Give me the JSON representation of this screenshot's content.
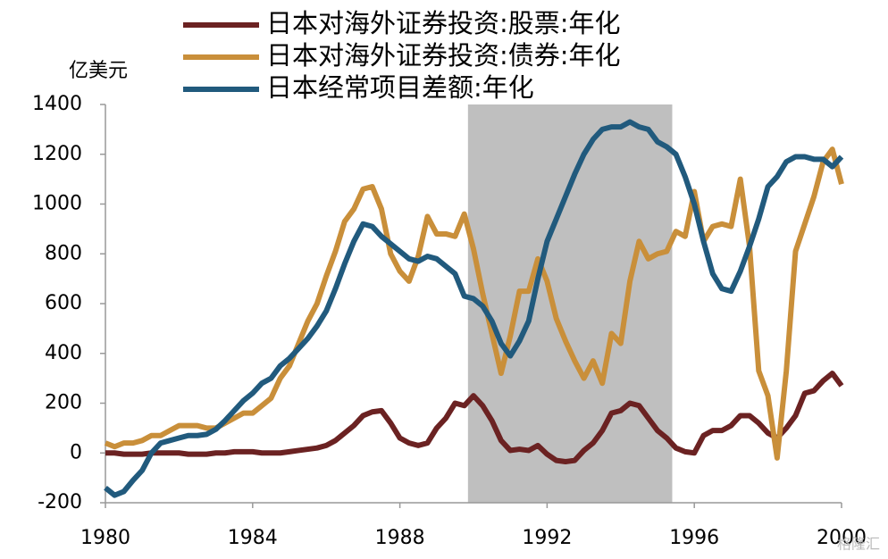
{
  "chart_data": {
    "type": "line",
    "y_unit": "亿美元",
    "x": [
      1980,
      1980.25,
      1980.5,
      1980.75,
      1981,
      1981.25,
      1981.5,
      1981.75,
      1982,
      1982.25,
      1982.5,
      1982.75,
      1983,
      1983.25,
      1983.5,
      1983.75,
      1984,
      1984.25,
      1984.5,
      1984.75,
      1985,
      1985.25,
      1985.5,
      1985.75,
      1986,
      1986.25,
      1986.5,
      1986.75,
      1987,
      1987.25,
      1987.5,
      1987.75,
      1988,
      1988.25,
      1988.5,
      1988.75,
      1989,
      1989.25,
      1989.5,
      1989.75,
      1990,
      1990.25,
      1990.5,
      1990.75,
      1991,
      1991.25,
      1991.5,
      1991.75,
      1992,
      1992.25,
      1992.5,
      1992.75,
      1993,
      1993.25,
      1993.5,
      1993.75,
      1994,
      1994.25,
      1994.5,
      1994.75,
      1995,
      1995.25,
      1995.5,
      1995.75,
      1996,
      1996.25,
      1996.5,
      1996.75,
      1997,
      1997.25,
      1997.5,
      1997.75,
      1998,
      1998.25,
      1998.5,
      1998.75,
      1999,
      1999.25,
      1999.5,
      1999.75,
      2000
    ],
    "series": [
      {
        "name": "日本对海外证券投资:股票:年化",
        "color": "#6b2222",
        "values": [
          0,
          0,
          -5,
          -5,
          -5,
          0,
          0,
          0,
          0,
          -5,
          -5,
          -5,
          0,
          0,
          5,
          5,
          5,
          0,
          0,
          0,
          5,
          10,
          15,
          20,
          30,
          50,
          80,
          110,
          150,
          165,
          170,
          120,
          60,
          40,
          30,
          40,
          100,
          140,
          200,
          190,
          230,
          190,
          130,
          50,
          10,
          15,
          10,
          30,
          -5,
          -30,
          -35,
          -30,
          10,
          40,
          90,
          160,
          170,
          200,
          190,
          140,
          90,
          60,
          20,
          5,
          0,
          70,
          90,
          90,
          110,
          150,
          150,
          120,
          80,
          60,
          100,
          150,
          240,
          250,
          290,
          320,
          270
        ]
      },
      {
        "name": "日本对海外证券投资:债券:年化",
        "color": "#c98f3a",
        "values": [
          40,
          25,
          40,
          40,
          50,
          70,
          70,
          90,
          110,
          110,
          110,
          100,
          100,
          120,
          140,
          160,
          160,
          190,
          220,
          300,
          350,
          440,
          530,
          600,
          710,
          810,
          930,
          980,
          1060,
          1070,
          980,
          800,
          730,
          690,
          790,
          950,
          880,
          880,
          870,
          960,
          820,
          640,
          480,
          320,
          470,
          650,
          650,
          780,
          690,
          540,
          450,
          370,
          300,
          370,
          280,
          480,
          440,
          690,
          850,
          780,
          800,
          810,
          890,
          870,
          1050,
          850,
          910,
          920,
          910,
          1100,
          830,
          330,
          230,
          -20,
          330,
          810,
          920,
          1030,
          1170,
          1220,
          1080
        ]
      },
      {
        "name": "日本经常项目差额:年化",
        "color": "#215a7d",
        "values": [
          -140,
          -170,
          -155,
          -110,
          -70,
          0,
          40,
          50,
          60,
          70,
          70,
          75,
          95,
          130,
          170,
          210,
          240,
          280,
          300,
          350,
          380,
          420,
          460,
          510,
          570,
          660,
          760,
          850,
          920,
          910,
          870,
          840,
          810,
          780,
          770,
          790,
          780,
          750,
          720,
          630,
          620,
          590,
          530,
          440,
          390,
          450,
          530,
          700,
          850,
          940,
          1030,
          1120,
          1200,
          1260,
          1300,
          1310,
          1310,
          1330,
          1310,
          1300,
          1250,
          1230,
          1200,
          1110,
          1000,
          850,
          720,
          660,
          650,
          730,
          830,
          940,
          1070,
          1110,
          1170,
          1190,
          1190,
          1180,
          1180,
          1150,
          1190
        ]
      }
    ],
    "xlim": [
      1980,
      2000
    ],
    "xticks": [
      1980,
      1984,
      1988,
      1992,
      1996,
      2000
    ],
    "ylim": [
      -200,
      1400
    ],
    "yticks": [
      -200,
      0,
      200,
      400,
      600,
      800,
      1000,
      1200,
      1400
    ],
    "shaded_range": [
      1989.85,
      1995.4
    ],
    "shade_color": "#bfbfbf",
    "legend": "top",
    "watermark": "格隆汇"
  }
}
